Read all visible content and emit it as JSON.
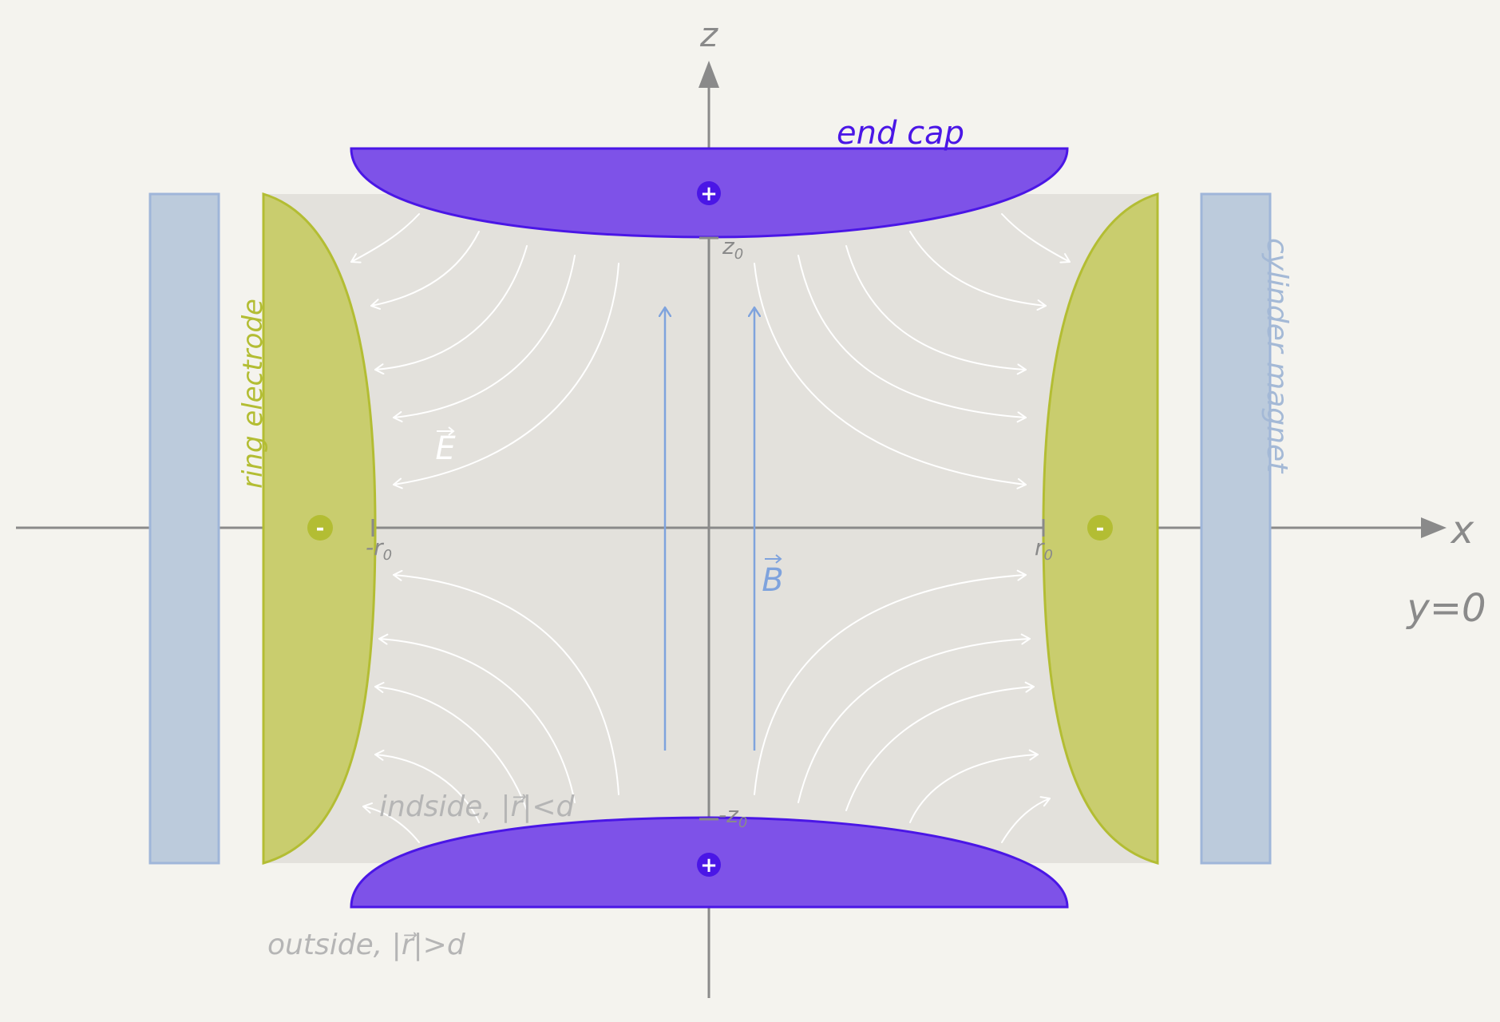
{
  "labels": {
    "z_axis": "z",
    "x_axis": "x",
    "plane": "y=0",
    "end_cap": "end cap",
    "ring_electrode": "ring electrode",
    "cylinder_magnet": "cylinder magnet",
    "e_field": "E",
    "b_field": "B",
    "z0_pos": "z",
    "z0_pos_sub": "0",
    "z0_neg": "-z",
    "z0_neg_sub": "0",
    "r0_neg": "-r",
    "r0_neg_sub": "0",
    "r0_pos": "r",
    "r0_pos_sub": "0",
    "inside": "indside, |r⃗|<d",
    "outside": "outside, |r⃗|>d",
    "plus": "+",
    "minus": "-"
  },
  "colors": {
    "background": "#f4f3ee",
    "trap_region": "#e3e1dc",
    "end_cap_fill": "#7e52e8",
    "end_cap_stroke": "#4a16e6",
    "end_cap_text": "#4a16e6",
    "ring_fill": "#c9cd6e",
    "ring_stroke": "#b3bd33",
    "ring_text": "#b3bd33",
    "magnet_fill": "#bccbdc",
    "magnet_stroke": "#9fb6d9",
    "magnet_text": "#a4b9d6",
    "axis": "#8a8a8a",
    "field_line": "#ffffff",
    "b_field": "#7fa3dd",
    "faint_text": "#b5b5b5"
  }
}
